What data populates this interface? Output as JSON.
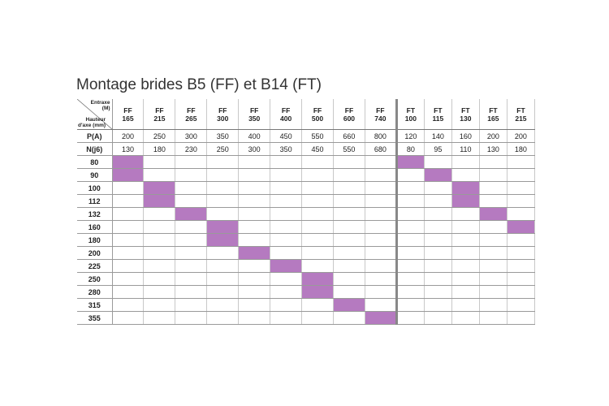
{
  "title": "Montage brides B5 (FF) et B14 (FT)",
  "corner": {
    "top": "Entraxe",
    "top_unit": "(M)",
    "bottom": "Hauteur",
    "bottom_unit": "d'axe (mm)"
  },
  "columns": [
    {
      "type": "FF",
      "size": "165"
    },
    {
      "type": "FF",
      "size": "215"
    },
    {
      "type": "FF",
      "size": "265"
    },
    {
      "type": "FF",
      "size": "300"
    },
    {
      "type": "FF",
      "size": "350"
    },
    {
      "type": "FF",
      "size": "400"
    },
    {
      "type": "FF",
      "size": "500"
    },
    {
      "type": "FF",
      "size": "600"
    },
    {
      "type": "FF",
      "size": "740"
    },
    {
      "type": "FT",
      "size": "100"
    },
    {
      "type": "FT",
      "size": "115"
    },
    {
      "type": "FT",
      "size": "130"
    },
    {
      "type": "FT",
      "size": "165"
    },
    {
      "type": "FT",
      "size": "215"
    }
  ],
  "spec_rows": [
    {
      "label": "P(A)",
      "values": [
        200,
        250,
        300,
        350,
        400,
        450,
        550,
        660,
        800,
        120,
        140,
        160,
        200,
        200
      ]
    },
    {
      "label": "N(j6)",
      "values": [
        130,
        180,
        230,
        250,
        300,
        350,
        450,
        550,
        680,
        80,
        95,
        110,
        130,
        180
      ]
    }
  ],
  "rows": [
    {
      "label": "80",
      "cells": [
        true,
        false,
        false,
        false,
        false,
        false,
        false,
        false,
        false,
        true,
        false,
        false,
        false,
        false
      ]
    },
    {
      "label": "90",
      "cells": [
        true,
        false,
        false,
        false,
        false,
        false,
        false,
        false,
        false,
        false,
        true,
        false,
        false,
        false
      ]
    },
    {
      "label": "100",
      "cells": [
        false,
        true,
        false,
        false,
        false,
        false,
        false,
        false,
        false,
        false,
        false,
        true,
        false,
        false
      ]
    },
    {
      "label": "112",
      "cells": [
        false,
        true,
        false,
        false,
        false,
        false,
        false,
        false,
        false,
        false,
        false,
        true,
        false,
        false
      ]
    },
    {
      "label": "132",
      "cells": [
        false,
        false,
        true,
        false,
        false,
        false,
        false,
        false,
        false,
        false,
        false,
        false,
        true,
        false
      ]
    },
    {
      "label": "160",
      "cells": [
        false,
        false,
        false,
        true,
        false,
        false,
        false,
        false,
        false,
        false,
        false,
        false,
        false,
        true
      ]
    },
    {
      "label": "180",
      "cells": [
        false,
        false,
        false,
        true,
        false,
        false,
        false,
        false,
        false,
        false,
        false,
        false,
        false,
        false
      ]
    },
    {
      "label": "200",
      "cells": [
        false,
        false,
        false,
        false,
        true,
        false,
        false,
        false,
        false,
        false,
        false,
        false,
        false,
        false
      ]
    },
    {
      "label": "225",
      "cells": [
        false,
        false,
        false,
        false,
        false,
        true,
        false,
        false,
        false,
        false,
        false,
        false,
        false,
        false
      ]
    },
    {
      "label": "250",
      "cells": [
        false,
        false,
        false,
        false,
        false,
        false,
        true,
        false,
        false,
        false,
        false,
        false,
        false,
        false
      ]
    },
    {
      "label": "280",
      "cells": [
        false,
        false,
        false,
        false,
        false,
        false,
        true,
        false,
        false,
        false,
        false,
        false,
        false,
        false
      ]
    },
    {
      "label": "315",
      "cells": [
        false,
        false,
        false,
        false,
        false,
        false,
        false,
        true,
        false,
        false,
        false,
        false,
        false,
        false
      ]
    },
    {
      "label": "355",
      "cells": [
        false,
        false,
        false,
        false,
        false,
        false,
        false,
        false,
        true,
        false,
        false,
        false,
        false,
        false
      ]
    }
  ]
}
